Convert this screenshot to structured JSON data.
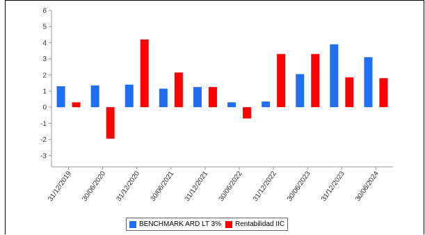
{
  "chart_data": {
    "type": "bar",
    "categories": [
      "31/12/2019",
      "30/06/2020",
      "31/12/2020",
      "30/06/2021",
      "31/12/2021",
      "30/06/2022",
      "31/12/2022",
      "30/06/2023",
      "31/12/2023",
      "30/06/2024"
    ],
    "series": [
      {
        "name": "BENCHMARK ARD LT 3%",
        "color": "#1f6ff0",
        "values": [
          1.3,
          1.35,
          1.4,
          1.15,
          1.25,
          0.3,
          0.35,
          2.05,
          3.9,
          3.1
        ]
      },
      {
        "name": "Rentabilidad IIC",
        "color": "#ff0000",
        "values": [
          0.3,
          -1.95,
          4.2,
          2.15,
          1.25,
          -0.7,
          3.3,
          3.3,
          1.85,
          1.8
        ]
      }
    ],
    "ylim": [
      -3.7,
      6
    ],
    "yticks": [
      -3,
      -2,
      -1,
      0,
      1,
      2,
      3,
      4,
      5,
      6
    ],
    "grid": false,
    "legend_position": "bottom"
  }
}
